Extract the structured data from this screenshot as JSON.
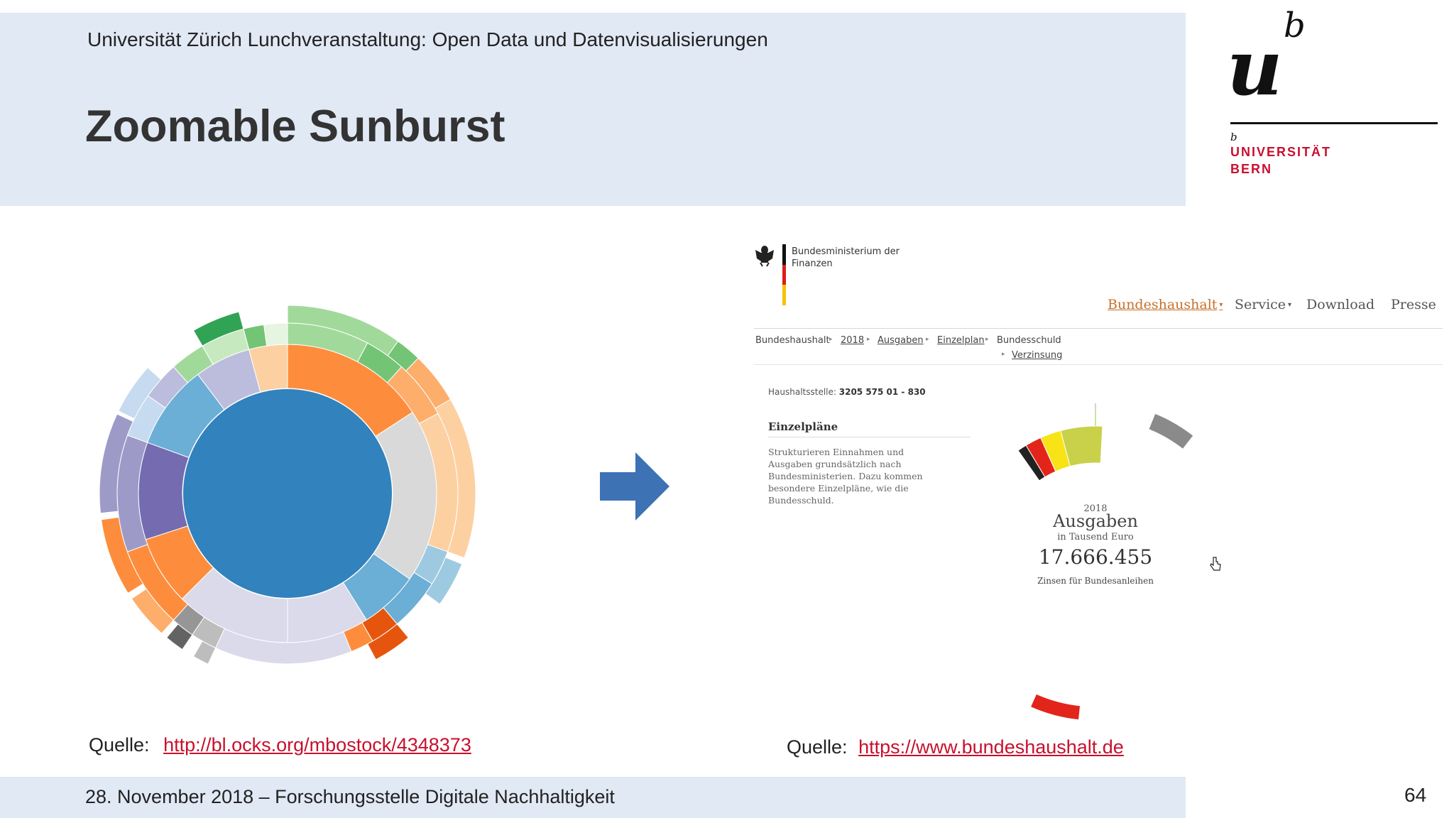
{
  "slide": {
    "subtitle": "Universität Zürich Lunchveranstaltung: Open Data und Datenvisualisierungen",
    "title": "Zoomable Sunburst",
    "page_number": "64"
  },
  "logo": {
    "mark_u": "u",
    "mark_b": "b",
    "small_b": "b",
    "line1": "UNIVERSITÄT",
    "line2": "BERN"
  },
  "sources": {
    "left_label": "Quelle:",
    "left_link": "http://bl.ocks.org/mbostock/4348373",
    "right_label": "Quelle:",
    "right_link": "https://www.bundeshaushalt.de"
  },
  "footer": {
    "text": "28. November 2018 – Forschungsstelle Digitale Nachhaltigkeit"
  },
  "bundeshaushalt": {
    "ministry": "Bundesministerium der Finanzen",
    "nav": [
      {
        "label": "Bundeshaushalt",
        "dropdown": true,
        "active": true
      },
      {
        "label": "Service",
        "dropdown": true,
        "active": false
      },
      {
        "label": "Download",
        "dropdown": false,
        "active": false
      },
      {
        "label": "Presse",
        "dropdown": false,
        "active": false
      }
    ],
    "breadcrumb": [
      "Bundeshaushalt",
      "2018",
      "Ausgaben",
      "Einzelplan",
      "Bundesschuld",
      "Verzinsung"
    ],
    "haushaltsstelle_label": "Haushaltsstelle:",
    "haushaltsstelle_value": "3205 575 01 - 830",
    "section_title": "Einzelpläne",
    "section_text": "Strukturieren Einnahmen und Ausgaben grundsätzlich nach Bundesministerien. Dazu kommen besondere Einzelpläne, wie die Bundesschuld.",
    "center": {
      "year": "2018",
      "label": "Ausgaben",
      "unit": "in Tausend Euro",
      "value": "17.666.455",
      "caption": "Zinsen für Bundesanleihen"
    },
    "colors": {
      "nav_active": "#c8702a",
      "donut_green": "#97c93d",
      "ring_grey": "#a7a7a7",
      "accent_red": "#e3241b"
    }
  },
  "colors": {
    "band": "#e1e9f5",
    "link": "#c8102e",
    "arrow": "#3d72b4",
    "logo_red": "#c8102e"
  },
  "icons": {
    "arrow": "arrow-right-icon",
    "eagle": "federal-eagle-icon",
    "cursor": "hand-cursor-icon"
  }
}
